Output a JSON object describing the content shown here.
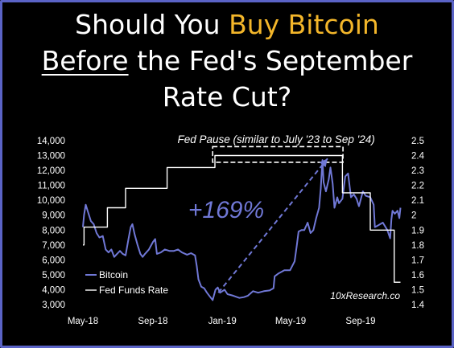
{
  "title": {
    "line1_a": "Should You ",
    "line1_b": "Buy Bitcoin",
    "line2_a": "Before",
    "line2_b": " the Fed's September",
    "line3": "Rate Cut?"
  },
  "colors": {
    "background": "#000000",
    "frame": "#5a63c6",
    "highlight": "#f3b62a",
    "bitcoin": "#7078d6",
    "fed_rate": "#ffffff",
    "arrow": "#7078d6"
  },
  "chart_data": {
    "type": "line",
    "annotation_pause": "Fed Pause (similar to July '23 to Sep '24)",
    "annotation_gain": "+169%",
    "source": "10xResearch.co",
    "x_ticks": [
      "May-18",
      "Sep-18",
      "Jan-19",
      "May-19",
      "Sep-19"
    ],
    "x_tick_dates": [
      "2018-05-01",
      "2018-09-01",
      "2019-01-01",
      "2019-05-01",
      "2019-09-01"
    ],
    "x_range": [
      "2018-05-01",
      "2019-11-15"
    ],
    "y_left": {
      "ticks": [
        "3,000",
        "4,000",
        "5,000",
        "6,000",
        "7,000",
        "8,000",
        "9,000",
        "10,000",
        "11,000",
        "12,000",
        "13,000",
        "14,000"
      ],
      "range": [
        3000,
        14000
      ]
    },
    "y_right": {
      "ticks": [
        "1.4",
        "1.5",
        "1.6",
        "1.7",
        "1.8",
        "1.9",
        "2",
        "2.1",
        "2.2",
        "2.3",
        "2.4",
        "2.5"
      ],
      "range": [
        1.4,
        2.5
      ]
    },
    "legend": {
      "placement": "bottom-left",
      "bitcoin_label": "Bitcoin",
      "fed_label": "Fed Funds Rate"
    },
    "series": [
      {
        "name": "Bitcoin",
        "axis": "left",
        "points": [
          [
            "2018-05-01",
            8200
          ],
          [
            "2018-05-03",
            9000
          ],
          [
            "2018-05-06",
            9700
          ],
          [
            "2018-05-10",
            9200
          ],
          [
            "2018-05-15",
            8600
          ],
          [
            "2018-05-20",
            8400
          ],
          [
            "2018-05-25",
            7800
          ],
          [
            "2018-05-30",
            7500
          ],
          [
            "2018-06-05",
            7600
          ],
          [
            "2018-06-10",
            6700
          ],
          [
            "2018-06-15",
            6500
          ],
          [
            "2018-06-20",
            6700
          ],
          [
            "2018-06-25",
            6200
          ],
          [
            "2018-06-30",
            6400
          ],
          [
            "2018-07-05",
            6600
          ],
          [
            "2018-07-10",
            6400
          ],
          [
            "2018-07-15",
            6300
          ],
          [
            "2018-07-20",
            7400
          ],
          [
            "2018-07-24",
            8200
          ],
          [
            "2018-07-27",
            8400
          ],
          [
            "2018-07-31",
            7700
          ],
          [
            "2018-08-05",
            7000
          ],
          [
            "2018-08-10",
            6400
          ],
          [
            "2018-08-14",
            6200
          ],
          [
            "2018-08-18",
            6400
          ],
          [
            "2018-08-25",
            6700
          ],
          [
            "2018-09-01",
            7200
          ],
          [
            "2018-09-05",
            7400
          ],
          [
            "2018-09-08",
            6400
          ],
          [
            "2018-09-15",
            6500
          ],
          [
            "2018-09-22",
            6700
          ],
          [
            "2018-09-30",
            6600
          ],
          [
            "2018-10-08",
            6600
          ],
          [
            "2018-10-15",
            6700
          ],
          [
            "2018-10-22",
            6500
          ],
          [
            "2018-10-31",
            6350
          ],
          [
            "2018-11-07",
            6450
          ],
          [
            "2018-11-14",
            6300
          ],
          [
            "2018-11-17",
            5600
          ],
          [
            "2018-11-20",
            4700
          ],
          [
            "2018-11-25",
            4200
          ],
          [
            "2018-11-30",
            4100
          ],
          [
            "2018-12-05",
            3800
          ],
          [
            "2018-12-10",
            3550
          ],
          [
            "2018-12-15",
            3300
          ],
          [
            "2018-12-20",
            4000
          ],
          [
            "2018-12-24",
            4150
          ],
          [
            "2018-12-28",
            3800
          ],
          [
            "2019-01-05",
            4000
          ],
          [
            "2019-01-10",
            3700
          ],
          [
            "2019-01-20",
            3600
          ],
          [
            "2019-01-31",
            3450
          ],
          [
            "2019-02-08",
            3500
          ],
          [
            "2019-02-15",
            3600
          ],
          [
            "2019-02-24",
            3900
          ],
          [
            "2019-03-05",
            3800
          ],
          [
            "2019-03-15",
            3900
          ],
          [
            "2019-03-25",
            3950
          ],
          [
            "2019-04-01",
            4100
          ],
          [
            "2019-04-03",
            4900
          ],
          [
            "2019-04-10",
            5100
          ],
          [
            "2019-04-20",
            5300
          ],
          [
            "2019-04-30",
            5300
          ],
          [
            "2019-05-08",
            5900
          ],
          [
            "2019-05-12",
            7000
          ],
          [
            "2019-05-15",
            7900
          ],
          [
            "2019-05-20",
            8000
          ],
          [
            "2019-05-25",
            8000
          ],
          [
            "2019-05-31",
            8500
          ],
          [
            "2019-06-05",
            7800
          ],
          [
            "2019-06-10",
            8000
          ],
          [
            "2019-06-15",
            8800
          ],
          [
            "2019-06-20",
            9500
          ],
          [
            "2019-06-23",
            10800
          ],
          [
            "2019-06-26",
            12700
          ],
          [
            "2019-06-28",
            11200
          ],
          [
            "2019-07-02",
            10600
          ],
          [
            "2019-07-07",
            11400
          ],
          [
            "2019-07-10",
            12200
          ],
          [
            "2019-07-14",
            11100
          ],
          [
            "2019-07-17",
            9500
          ],
          [
            "2019-07-22",
            10200
          ],
          [
            "2019-07-25",
            9800
          ],
          [
            "2019-07-31",
            10100
          ],
          [
            "2019-08-05",
            11600
          ],
          [
            "2019-08-10",
            11800
          ],
          [
            "2019-08-15",
            10200
          ],
          [
            "2019-08-20",
            10400
          ],
          [
            "2019-08-25",
            10100
          ],
          [
            "2019-08-29",
            9600
          ],
          [
            "2019-09-05",
            10600
          ],
          [
            "2019-09-10",
            10300
          ],
          [
            "2019-09-18",
            10200
          ],
          [
            "2019-09-24",
            9700
          ],
          [
            "2019-09-26",
            8200
          ],
          [
            "2019-10-01",
            8300
          ],
          [
            "2019-10-10",
            8500
          ],
          [
            "2019-10-18",
            8000
          ],
          [
            "2019-10-23",
            7450
          ],
          [
            "2019-10-25",
            8700
          ],
          [
            "2019-10-27",
            9300
          ],
          [
            "2019-10-31",
            9100
          ],
          [
            "2019-11-05",
            9300
          ],
          [
            "2019-11-08",
            8800
          ],
          [
            "2019-11-10",
            9500
          ]
        ]
      },
      {
        "name": "Fed Funds Rate",
        "axis": "right",
        "points": [
          [
            "2018-05-01",
            1.8
          ],
          [
            "2018-05-03",
            1.8
          ],
          [
            "2018-05-03",
            1.92
          ],
          [
            "2018-06-13",
            1.92
          ],
          [
            "2018-06-13",
            2.05
          ],
          [
            "2018-07-15",
            2.05
          ],
          [
            "2018-07-15",
            2.18
          ],
          [
            "2018-09-26",
            2.18
          ],
          [
            "2018-09-26",
            2.32
          ],
          [
            "2018-12-19",
            2.32
          ],
          [
            "2018-12-19",
            2.4
          ],
          [
            "2019-07-31",
            2.4
          ],
          [
            "2019-07-31",
            2.15
          ],
          [
            "2019-09-18",
            2.15
          ],
          [
            "2019-09-18",
            1.9
          ],
          [
            "2019-10-30",
            1.9
          ],
          [
            "2019-10-30",
            1.55
          ],
          [
            "2019-11-10",
            1.55
          ]
        ]
      }
    ],
    "annotations": {
      "pause_box": {
        "x_start": "2018-12-15",
        "x_end": "2019-08-01",
        "y_left": [
          12550,
          13600
        ]
      },
      "arrow": {
        "from": [
          "2018-12-25",
          3800
        ],
        "to": [
          "2019-07-05",
          12800
        ]
      }
    }
  }
}
